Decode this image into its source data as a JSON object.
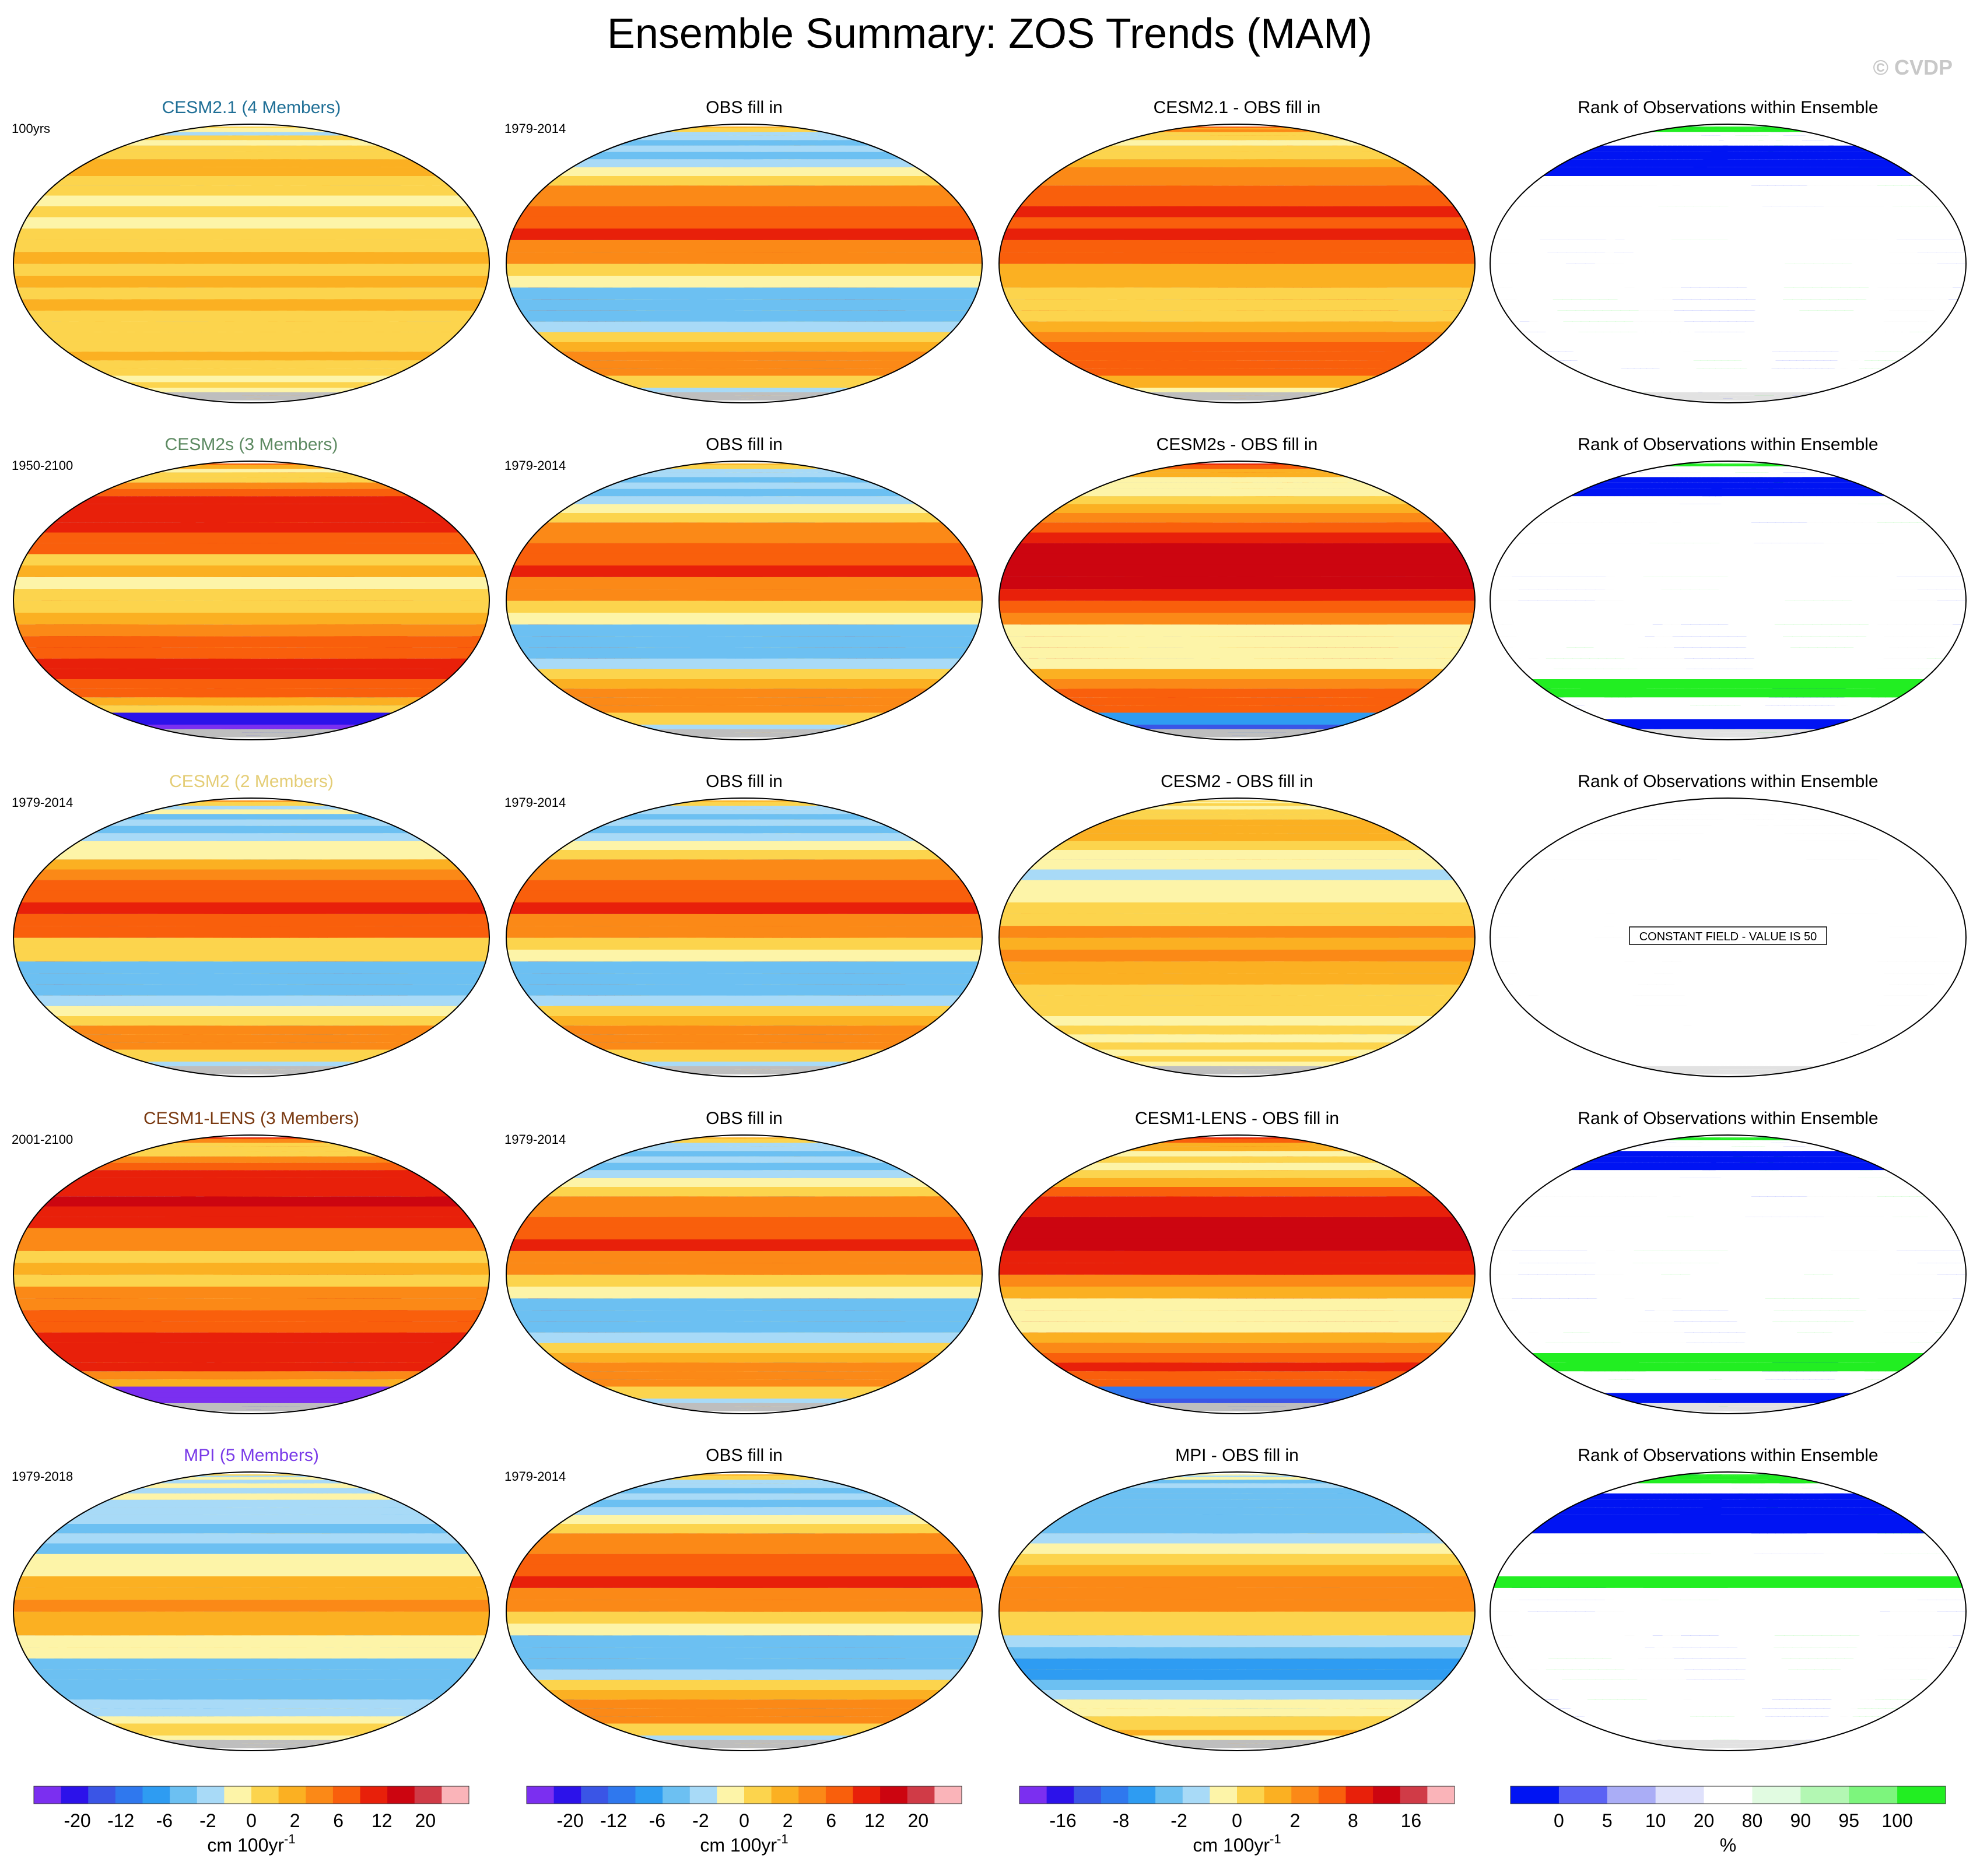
{
  "title": "Ensemble Summary: ZOS Trends (MAM)",
  "watermark": "© CVDP",
  "chart_data": {
    "type": "heatmap",
    "season": "MAM",
    "variable": "ZOS",
    "rank_title": "Rank of Observations within Ensemble",
    "colors": {
      "trend": [
        "#7b2ff0",
        "#2c12ea",
        "#3a55e6",
        "#2f78ee",
        "#2e9cf2",
        "#6cc0f2",
        "#a8daf7",
        "#fdf4a8",
        "#fcd44d",
        "#fbb022",
        "#fb8917",
        "#f95f0c",
        "#e8200a",
        "#cc0510",
        "#d03b47",
        "#fab4b9"
      ],
      "rank": [
        "#0014f3",
        "#5b62f4",
        "#aaadf6",
        "#dfe1fb",
        "#ffffff",
        "#e1fbe1",
        "#b3f7b3",
        "#7df57d",
        "#22ee22"
      ],
      "land": "#bebebe",
      "rank_land": "#e2e2e2",
      "mean_title_colors": [
        "#1f6f96",
        "#5d8a62",
        "#e4cd76",
        "#7a3a12",
        "#7a3be8"
      ]
    },
    "rows": [
      {
        "ensemble": "CESM2.1 (4 Members)",
        "mean_period": "100yrs",
        "obs_title": "OBS fill in",
        "obs_period": "1979-2014",
        "diff_title": "CESM2.1 - OBS fill in",
        "rank_note": "",
        "fields": {
          "mean": {
            "a": 1,
            "b": -2,
            "c": 0.5,
            "d": 0.8,
            "e": 0.2,
            "amp": 1.2,
            "f": 0.5,
            "phase": 0.3
          },
          "obs": {
            "a": 0.5,
            "b": 2,
            "c": 2,
            "d": 1,
            "e": 0,
            "amp": 7,
            "f": 1.8,
            "phase": 1.1
          },
          "diff": {
            "a": 4,
            "b": 4,
            "c": 2.5,
            "d": 1.4,
            "e": 0,
            "amp": 5,
            "f": 1.5,
            "phase": 2.6
          },
          "rank": {
            "a": 0,
            "b": 0,
            "c": 1,
            "d": 1,
            "e": 0,
            "amp": 1,
            "f": 1.6,
            "phase": 0.4
          }
        }
      },
      {
        "ensemble": "CESM2s (3 Members)",
        "mean_period": "1950-2100",
        "obs_title": "OBS fill in",
        "obs_period": "1979-2014",
        "diff_title": "CESM2s - OBS fill in",
        "rank_note": "",
        "fields": {
          "mean": {
            "a": 4,
            "b": 9,
            "c": 2.5,
            "d": 1,
            "e": -14,
            "amp": 8,
            "f": 1.6,
            "phase": 0.7
          },
          "obs": {
            "a": 0.5,
            "b": 2,
            "c": 2,
            "d": 1,
            "e": 0,
            "amp": 7,
            "f": 1.8,
            "phase": 1.1
          },
          "diff": {
            "a": 4,
            "b": 9,
            "c": 3,
            "d": 1.5,
            "e": -12,
            "amp": 8,
            "f": 1.7,
            "phase": 1.9
          },
          "rank": {
            "a": 0,
            "b": 0,
            "c": 1,
            "d": 1,
            "e": 0,
            "amp": 1,
            "f": 1.3,
            "phase": 2.0
          }
        }
      },
      {
        "ensemble": "CESM2 (2 Members)",
        "mean_period": "1979-2014",
        "obs_title": "OBS fill in",
        "obs_period": "1979-2014",
        "diff_title": "CESM2 - OBS fill in",
        "rank_note": "CONSTANT FIELD - VALUE IS 50",
        "fields": {
          "mean": {
            "a": 0.5,
            "b": 2.5,
            "c": 2,
            "d": 1,
            "e": 0,
            "amp": 7,
            "f": 1.8,
            "phase": 1.3
          },
          "obs": {
            "a": 0.5,
            "b": 2,
            "c": 2,
            "d": 1,
            "e": 0,
            "amp": 7,
            "f": 1.8,
            "phase": 1.1
          },
          "diff": {
            "a": 1,
            "b": 0,
            "c": 1,
            "d": 1,
            "e": 0,
            "amp": 2.5,
            "f": 1.4,
            "phase": 0.2
          },
          "rank": {
            "a": 0,
            "b": 0,
            "c": 0,
            "d": 0,
            "e": 0,
            "amp": 0,
            "f": 1,
            "phase": 0
          }
        }
      },
      {
        "ensemble": "CESM1-LENS (3 Members)",
        "mean_period": "2001-2100",
        "obs_title": "OBS fill in",
        "obs_period": "1979-2014",
        "diff_title": "CESM1-LENS - OBS fill in",
        "rank_note": "",
        "fields": {
          "mean": {
            "a": 5,
            "b": 9,
            "c": 3,
            "d": 1.2,
            "e": -18,
            "amp": 8,
            "f": 1.6,
            "phase": 0.9
          },
          "obs": {
            "a": 0.5,
            "b": 2,
            "c": 2,
            "d": 1,
            "e": 0,
            "amp": 7,
            "f": 1.8,
            "phase": 1.1
          },
          "diff": {
            "a": 5,
            "b": 8,
            "c": 3,
            "d": 1.3,
            "e": -14,
            "amp": 8,
            "f": 1.6,
            "phase": 2.3
          },
          "rank": {
            "a": 0,
            "b": 0,
            "c": 1,
            "d": 1,
            "e": 0,
            "amp": 1,
            "f": 1.2,
            "phase": 2.8
          }
        }
      },
      {
        "ensemble": "MPI (5 Members)",
        "mean_period": "1979-2018",
        "obs_title": "OBS fill in",
        "obs_period": "1979-2014",
        "diff_title": "MPI - OBS fill in",
        "rank_note": "",
        "fields": {
          "mean": {
            "a": -1.5,
            "b": 1,
            "c": 1.5,
            "d": 1,
            "e": 3,
            "amp": 3,
            "f": 1.2,
            "phase": 0.1
          },
          "obs": {
            "a": 0.5,
            "b": 2,
            "c": 2,
            "d": 1,
            "e": 0,
            "amp": 7,
            "f": 1.8,
            "phase": 1.1
          },
          "diff": {
            "a": -1.5,
            "b": -2,
            "c": 1.5,
            "d": 1,
            "e": 2,
            "amp": 5,
            "f": 1.6,
            "phase": 3.1
          },
          "rank": {
            "a": 0,
            "b": 0,
            "c": 0.5,
            "d": 0.5,
            "e": 0,
            "amp": 1,
            "f": 1.5,
            "phase": 1.4
          }
        }
      }
    ],
    "colorbars": [
      {
        "labels": [
          "-20",
          "-12",
          "-6",
          "-2",
          "0",
          "2",
          "6",
          "12",
          "20"
        ],
        "unit": "cm 100yr",
        "unit_sup": "-1"
      },
      {
        "labels": [
          "-20",
          "-12",
          "-6",
          "-2",
          "0",
          "2",
          "6",
          "12",
          "20"
        ],
        "unit": "cm 100yr",
        "unit_sup": "-1"
      },
      {
        "labels": [
          "-16",
          "-8",
          "-2",
          "0",
          "2",
          "8",
          "16"
        ],
        "unit": "cm 100yr",
        "unit_sup": "-1"
      },
      {
        "labels": [
          "0",
          "5",
          "10",
          "20",
          "80",
          "90",
          "95",
          "100"
        ],
        "unit": "%",
        "unit_sup": ""
      }
    ]
  }
}
